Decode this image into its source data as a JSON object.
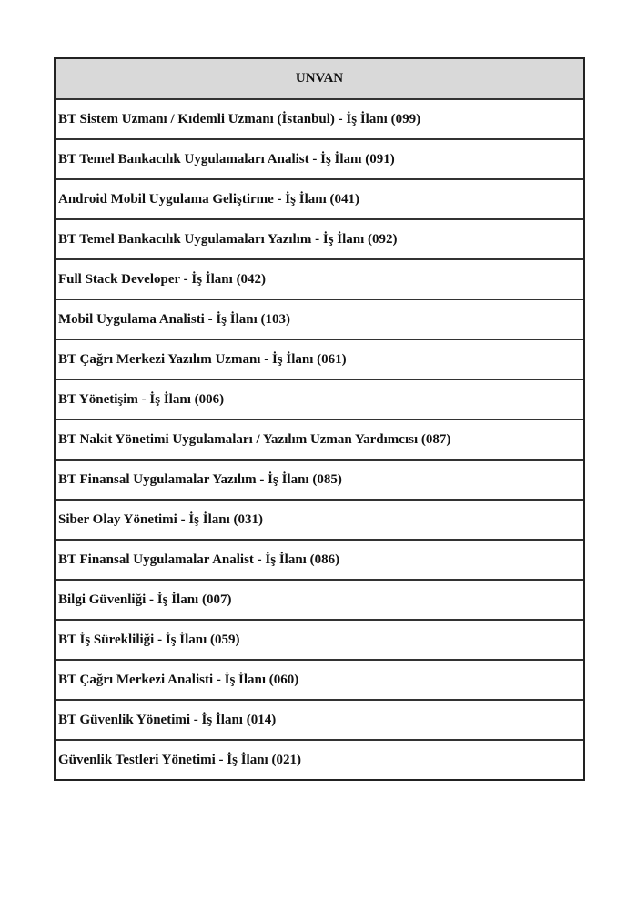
{
  "table": {
    "header": "UNVAN",
    "rows": [
      "BT Sistem Uzmanı / Kıdemli Uzmanı (İstanbul) - İş İlanı (099)",
      "BT Temel Bankacılık Uygulamaları Analist - İş İlanı (091)",
      "Android Mobil Uygulama Geliştirme - İş İlanı (041)",
      "BT Temel Bankacılık Uygulamaları Yazılım - İş İlanı (092)",
      "Full Stack Developer - İş İlanı (042)",
      "Mobil Uygulama Analisti - İş İlanı (103)",
      "BT Çağrı Merkezi Yazılım Uzmanı - İş İlanı (061)",
      "BT Yönetişim - İş İlanı (006)",
      "BT Nakit Yönetimi Uygulamaları / Yazılım Uzman Yardımcısı (087)",
      "BT Finansal Uygulamalar Yazılım - İş İlanı (085)",
      "Siber Olay Yönetimi - İş İlanı (031)",
      "BT Finansal Uygulamalar Analist - İş İlanı (086)",
      "Bilgi Güvenliği - İş İlanı (007)",
      "BT İş Sürekliliği - İş İlanı (059)",
      "BT Çağrı Merkezi Analisti - İş İlanı (060)",
      "BT Güvenlik Yönetimi - İş İlanı (014)",
      "Güvenlik Testleri Yönetimi - İş İlanı (021)"
    ]
  }
}
